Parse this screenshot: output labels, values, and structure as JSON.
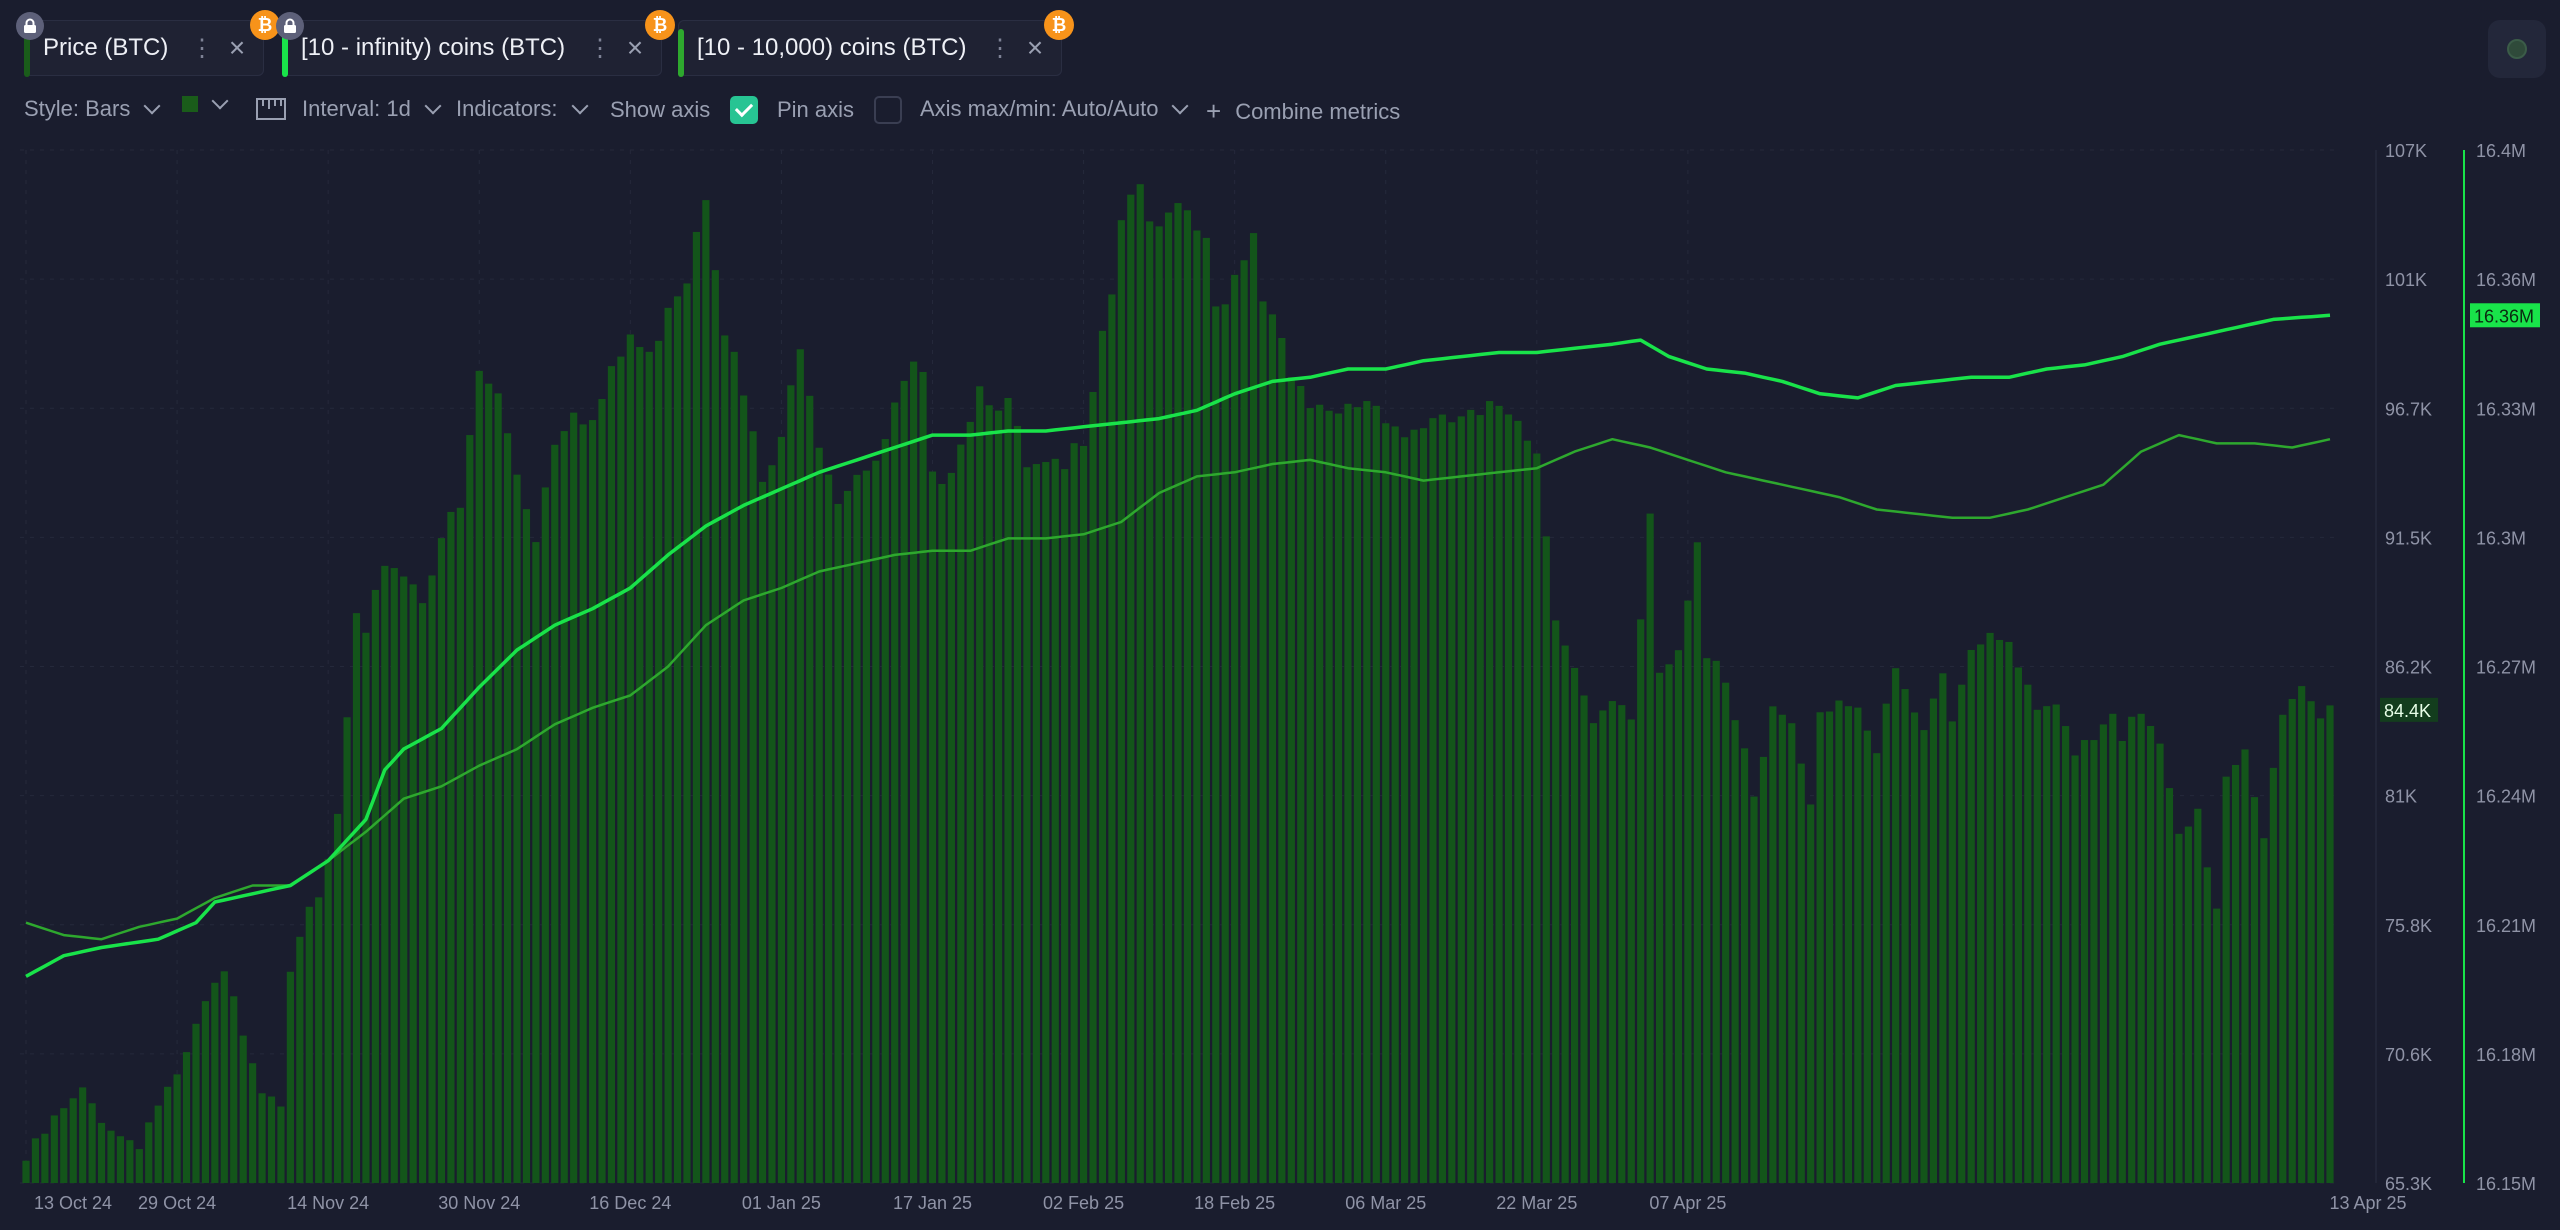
{
  "tabs": [
    {
      "label": "Price (BTC)",
      "color": "#1a5c1a",
      "locked": true
    },
    {
      "label": "[10 - infinity) coins (BTC)",
      "color": "#19e34a",
      "locked": true
    },
    {
      "label": "[10 - 10,000) coins (BTC)",
      "color": "#2ea82e",
      "locked": false
    }
  ],
  "tab_icons": {
    "btc": "₿",
    "more": "⋮",
    "close": "×",
    "lock": "lock-icon"
  },
  "toolbar": {
    "style": "Style: Bars",
    "interval": "Interval: 1d",
    "indicators": "Indicators:",
    "show_axis": "Show axis",
    "show_axis_checked": true,
    "pin_axis": "Pin axis",
    "pin_axis_checked": false,
    "axis_maxmin": "Axis max/min: Auto/Auto",
    "combine": "Combine metrics",
    "combine_icon": "+"
  },
  "colors": {
    "background": "#1a1d2e",
    "price_bars": "#13551a",
    "infinity_line": "#19e34a",
    "tenk_line": "#2ea82e",
    "accent": "#27c493"
  },
  "chart_data": {
    "type": "bar",
    "x_labels": [
      "13 Oct 24",
      "29 Oct 24",
      "14 Nov 24",
      "30 Nov 24",
      "16 Dec 24",
      "01 Jan 25",
      "17 Jan 25",
      "02 Feb 25",
      "18 Feb 25",
      "06 Mar 25",
      "22 Mar 25",
      "07 Apr 25",
      "13 Apr 25"
    ],
    "left_axis": {
      "ticks": [
        "107K",
        "101K",
        "96.7K",
        "91.5K",
        "86.2K",
        "81K",
        "75.8K",
        "70.6K",
        "65.3K"
      ],
      "range": [
        65300,
        107000
      ],
      "current": "84.4K"
    },
    "right_axis": {
      "ticks": [
        "16.4M",
        "16.36M",
        "16.33M",
        "16.3M",
        "16.27M",
        "16.24M",
        "16.21M",
        "16.18M",
        "16.15M"
      ],
      "range": [
        16150000,
        16400000
      ],
      "current": "16.36M"
    },
    "series": [
      {
        "name": "Price (BTC)",
        "kind": "bars",
        "axis": "left",
        "keyframes": [
          [
            0,
            66200
          ],
          [
            3,
            67800
          ],
          [
            6,
            68900
          ],
          [
            8,
            68000
          ],
          [
            10,
            67200
          ],
          [
            12,
            67000
          ],
          [
            14,
            68500
          ],
          [
            15,
            69000
          ],
          [
            16,
            69300
          ],
          [
            17,
            70400
          ],
          [
            19,
            72500
          ],
          [
            21,
            73600
          ],
          [
            23,
            71500
          ],
          [
            24,
            70500
          ],
          [
            25,
            69200
          ],
          [
            27,
            68800
          ],
          [
            28,
            74200
          ],
          [
            29,
            75500
          ],
          [
            30,
            76000
          ],
          [
            31,
            76500
          ],
          [
            33,
            80000
          ],
          [
            35,
            88000
          ],
          [
            36,
            87000
          ],
          [
            38,
            90500
          ],
          [
            40,
            90000
          ],
          [
            42,
            89000
          ],
          [
            44,
            91500
          ],
          [
            46,
            92400
          ],
          [
            48,
            98000
          ],
          [
            50,
            97000
          ],
          [
            52,
            94000
          ],
          [
            54,
            91500
          ],
          [
            56,
            95400
          ],
          [
            58,
            96800
          ],
          [
            60,
            96000
          ],
          [
            62,
            97800
          ],
          [
            64,
            99500
          ],
          [
            66,
            98500
          ],
          [
            68,
            101000
          ],
          [
            70,
            102000
          ],
          [
            71,
            104000
          ],
          [
            72,
            105500
          ],
          [
            74,
            100000
          ],
          [
            76,
            97000
          ],
          [
            78,
            93500
          ],
          [
            80,
            95000
          ],
          [
            82,
            99500
          ],
          [
            84,
            95500
          ],
          [
            86,
            93000
          ],
          [
            88,
            94200
          ],
          [
            90,
            94000
          ],
          [
            92,
            96500
          ],
          [
            94,
            98000
          ],
          [
            95,
            97600
          ],
          [
            96,
            93500
          ],
          [
            98,
            94500
          ],
          [
            99,
            95400
          ],
          [
            101,
            97500
          ],
          [
            104,
            96700
          ],
          [
            106,
            94000
          ],
          [
            108,
            94000
          ],
          [
            110,
            94000
          ],
          [
            112,
            95600
          ],
          [
            114,
            100000
          ],
          [
            115,
            101500
          ],
          [
            116,
            104500
          ],
          [
            118,
            106000
          ],
          [
            119,
            103500
          ],
          [
            121,
            104000
          ],
          [
            123,
            104500
          ],
          [
            125,
            103000
          ],
          [
            126,
            100500
          ],
          [
            128,
            102000
          ],
          [
            130,
            104000
          ],
          [
            131,
            101000
          ],
          [
            133,
            100000
          ],
          [
            134,
            97500
          ],
          [
            136,
            96500
          ],
          [
            138,
            96000
          ],
          [
            140,
            96500
          ],
          [
            142,
            97000
          ],
          [
            144,
            96500
          ],
          [
            146,
            95500
          ],
          [
            148,
            96000
          ],
          [
            150,
            95800
          ],
          [
            152,
            96200
          ],
          [
            154,
            96000
          ],
          [
            156,
            96700
          ],
          [
            158,
            96500
          ],
          [
            160,
            94800
          ],
          [
            162,
            88500
          ],
          [
            164,
            86000
          ],
          [
            166,
            83500
          ],
          [
            168,
            84500
          ],
          [
            170,
            84000
          ],
          [
            172,
            92400
          ],
          [
            173,
            86000
          ],
          [
            175,
            87000
          ],
          [
            177,
            91500
          ],
          [
            178,
            86500
          ],
          [
            179,
            86200
          ],
          [
            180,
            85000
          ],
          [
            182,
            82500
          ],
          [
            183,
            80500
          ],
          [
            185,
            84500
          ],
          [
            187,
            84000
          ],
          [
            189,
            81000
          ],
          [
            190,
            84500
          ],
          [
            192,
            85000
          ],
          [
            194,
            84000
          ],
          [
            196,
            82500
          ],
          [
            198,
            86000
          ],
          [
            200,
            84000
          ],
          [
            201,
            84000
          ],
          [
            203,
            86200
          ],
          [
            204,
            84000
          ],
          [
            206,
            87200
          ],
          [
            208,
            87000
          ],
          [
            210,
            87000
          ],
          [
            212,
            85000
          ],
          [
            213,
            84000
          ],
          [
            215,
            84500
          ],
          [
            217,
            83000
          ],
          [
            219,
            83500
          ],
          [
            221,
            84500
          ],
          [
            222,
            83500
          ],
          [
            224,
            84000
          ],
          [
            226,
            83000
          ],
          [
            228,
            79000
          ],
          [
            230,
            80000
          ],
          [
            232,
            76500
          ],
          [
            233,
            82000
          ],
          [
            235,
            83000
          ],
          [
            237,
            79500
          ],
          [
            239,
            84000
          ],
          [
            241,
            85000
          ],
          [
            243,
            84000
          ],
          [
            244,
            84400
          ]
        ]
      },
      {
        "name": "[10 - infinity) coins (BTC)",
        "kind": "line",
        "axis": "right",
        "keyframes": [
          [
            0,
            16200000
          ],
          [
            4,
            16205000
          ],
          [
            8,
            16207000
          ],
          [
            14,
            16209000
          ],
          [
            18,
            16213000
          ],
          [
            20,
            16218000
          ],
          [
            24,
            16220000
          ],
          [
            28,
            16222000
          ],
          [
            32,
            16228000
          ],
          [
            36,
            16238000
          ],
          [
            38,
            16250000
          ],
          [
            40,
            16255000
          ],
          [
            44,
            16260000
          ],
          [
            48,
            16270000
          ],
          [
            52,
            16279000
          ],
          [
            56,
            16285000
          ],
          [
            60,
            16289000
          ],
          [
            64,
            16294000
          ],
          [
            68,
            16302000
          ],
          [
            72,
            16309000
          ],
          [
            76,
            16314000
          ],
          [
            80,
            16318000
          ],
          [
            84,
            16322000
          ],
          [
            88,
            16325000
          ],
          [
            92,
            16328000
          ],
          [
            96,
            16331000
          ],
          [
            100,
            16331000
          ],
          [
            104,
            16332000
          ],
          [
            108,
            16332000
          ],
          [
            112,
            16333000
          ],
          [
            116,
            16334000
          ],
          [
            120,
            16335000
          ],
          [
            124,
            16337000
          ],
          [
            128,
            16341000
          ],
          [
            132,
            16344000
          ],
          [
            136,
            16345000
          ],
          [
            140,
            16347000
          ],
          [
            144,
            16347000
          ],
          [
            148,
            16349000
          ],
          [
            152,
            16350000
          ],
          [
            156,
            16351000
          ],
          [
            160,
            16351000
          ],
          [
            164,
            16352000
          ],
          [
            168,
            16353000
          ],
          [
            171,
            16354000
          ],
          [
            174,
            16350000
          ],
          [
            178,
            16347000
          ],
          [
            182,
            16346000
          ],
          [
            186,
            16344000
          ],
          [
            190,
            16341000
          ],
          [
            194,
            16340000
          ],
          [
            198,
            16343000
          ],
          [
            202,
            16344000
          ],
          [
            206,
            16345000
          ],
          [
            210,
            16345000
          ],
          [
            214,
            16347000
          ],
          [
            218,
            16348000
          ],
          [
            222,
            16350000
          ],
          [
            226,
            16353000
          ],
          [
            230,
            16355000
          ],
          [
            234,
            16357000
          ],
          [
            238,
            16359000
          ],
          [
            244,
            16360000
          ]
        ]
      },
      {
        "name": "[10 - 10,000) coins (BTC)",
        "kind": "line",
        "axis": "right",
        "keyframes": [
          [
            0,
            16213000
          ],
          [
            4,
            16210000
          ],
          [
            8,
            16209000
          ],
          [
            12,
            16212000
          ],
          [
            16,
            16214000
          ],
          [
            20,
            16219000
          ],
          [
            24,
            16222000
          ],
          [
            28,
            16222000
          ],
          [
            32,
            16228000
          ],
          [
            36,
            16235000
          ],
          [
            40,
            16243000
          ],
          [
            44,
            16246000
          ],
          [
            48,
            16251000
          ],
          [
            52,
            16255000
          ],
          [
            56,
            16261000
          ],
          [
            60,
            16265000
          ],
          [
            64,
            16268000
          ],
          [
            68,
            16275000
          ],
          [
            72,
            16285000
          ],
          [
            76,
            16291000
          ],
          [
            80,
            16294000
          ],
          [
            84,
            16298000
          ],
          [
            88,
            16300000
          ],
          [
            92,
            16302000
          ],
          [
            96,
            16303000
          ],
          [
            100,
            16303000
          ],
          [
            104,
            16306000
          ],
          [
            108,
            16306000
          ],
          [
            112,
            16307000
          ],
          [
            116,
            16310000
          ],
          [
            120,
            16317000
          ],
          [
            124,
            16321000
          ],
          [
            128,
            16322000
          ],
          [
            132,
            16324000
          ],
          [
            136,
            16325000
          ],
          [
            140,
            16323000
          ],
          [
            144,
            16322000
          ],
          [
            148,
            16320000
          ],
          [
            152,
            16321000
          ],
          [
            156,
            16322000
          ],
          [
            160,
            16323000
          ],
          [
            164,
            16327000
          ],
          [
            168,
            16330000
          ],
          [
            172,
            16328000
          ],
          [
            176,
            16325000
          ],
          [
            180,
            16322000
          ],
          [
            184,
            16320000
          ],
          [
            188,
            16318000
          ],
          [
            192,
            16316000
          ],
          [
            196,
            16313000
          ],
          [
            200,
            16312000
          ],
          [
            204,
            16311000
          ],
          [
            208,
            16311000
          ],
          [
            212,
            16313000
          ],
          [
            216,
            16316000
          ],
          [
            220,
            16319000
          ],
          [
            224,
            16327000
          ],
          [
            228,
            16331000
          ],
          [
            232,
            16329000
          ],
          [
            236,
            16329000
          ],
          [
            240,
            16328000
          ],
          [
            244,
            16330000
          ]
        ]
      }
    ],
    "n_points": 245,
    "grid": true,
    "legend": "top-left"
  }
}
